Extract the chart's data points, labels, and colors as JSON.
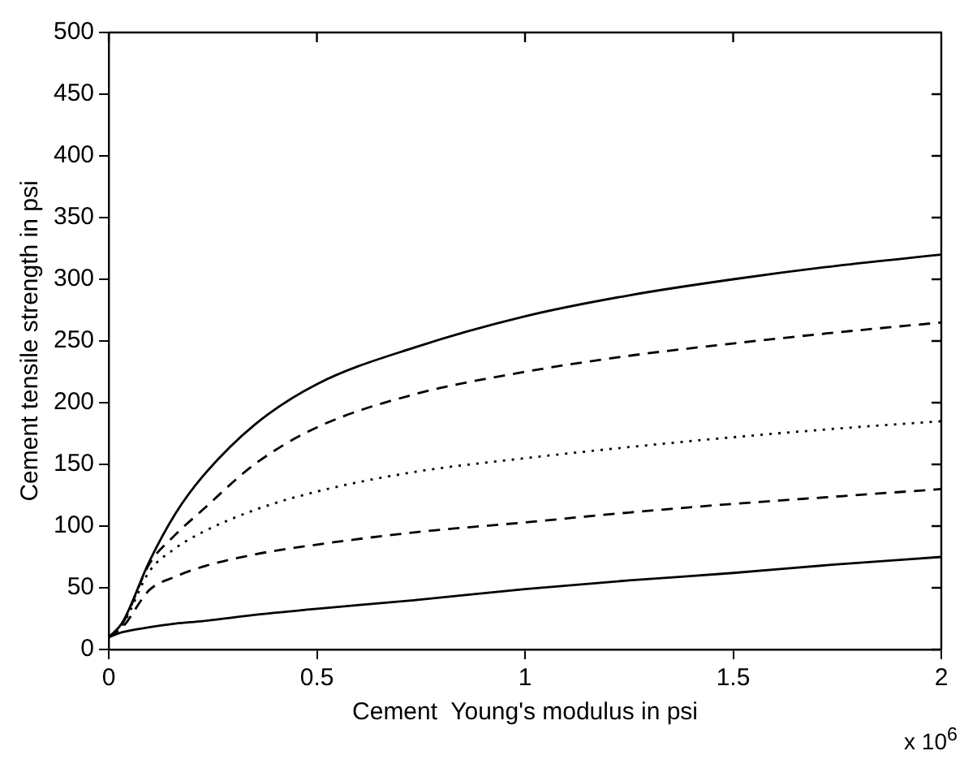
{
  "chart_data": {
    "type": "line",
    "xlabel": "Cement  Young's modulus in psi",
    "ylabel": "Cement tensile strength in psi",
    "annotations": [
      "x 10$^{6}$"
    ],
    "xlim": [
      0,
      2
    ],
    "xticks": [
      0,
      0.5,
      1,
      1.5,
      2
    ],
    "ylim": [
      0,
      500
    ],
    "yticks": [
      0,
      50,
      100,
      150,
      200,
      250,
      300,
      350,
      400,
      450,
      500
    ],
    "grid": false,
    "legend": false,
    "marker": "none",
    "series": [
      {
        "color": "#000000",
        "line_style": "solid",
        "x": [
          0,
          0.033,
          0.097,
          0.16,
          0.225,
          0.35,
          0.5,
          0.737,
          1,
          1.25,
          1.5,
          1.75,
          2
        ],
        "values": [
          10,
          22,
          71,
          110,
          140,
          182,
          215,
          245,
          270,
          287,
          300,
          311,
          320
        ]
      },
      {
        "color": "#000000",
        "line_style": "dashed",
        "x": [
          0,
          0.033,
          0.097,
          0.16,
          0.225,
          0.35,
          0.5,
          0.737,
          1,
          1.25,
          1.5,
          1.75,
          2
        ],
        "values": [
          10,
          21,
          69,
          93,
          113,
          150,
          180,
          207,
          225,
          238,
          248,
          257,
          265
        ]
      },
      {
        "color": "#000000",
        "line_style": "dotted",
        "x": [
          0,
          0.033,
          0.097,
          0.16,
          0.225,
          0.35,
          0.5,
          0.737,
          1,
          1.25,
          1.5,
          1.75,
          2
        ],
        "values": [
          10,
          20,
          63,
          82,
          95,
          113,
          128,
          144,
          155,
          164,
          172,
          179,
          185
        ]
      },
      {
        "color": "#000000",
        "line_style": "dashed",
        "x": [
          0,
          0.033,
          0.097,
          0.16,
          0.225,
          0.35,
          0.5,
          0.737,
          1,
          1.25,
          1.5,
          1.75,
          2
        ],
        "values": [
          10,
          18,
          48,
          59,
          67,
          77,
          85,
          95,
          103,
          111,
          118,
          124,
          130
        ]
      },
      {
        "color": "#000000",
        "line_style": "solid",
        "x": [
          0,
          0.033,
          0.097,
          0.16,
          0.225,
          0.35,
          0.5,
          0.737,
          1,
          1.25,
          1.5,
          1.75,
          2
        ],
        "values": [
          10,
          14,
          18,
          21,
          23,
          28,
          33,
          40,
          49,
          56,
          62,
          69,
          75
        ]
      }
    ]
  }
}
